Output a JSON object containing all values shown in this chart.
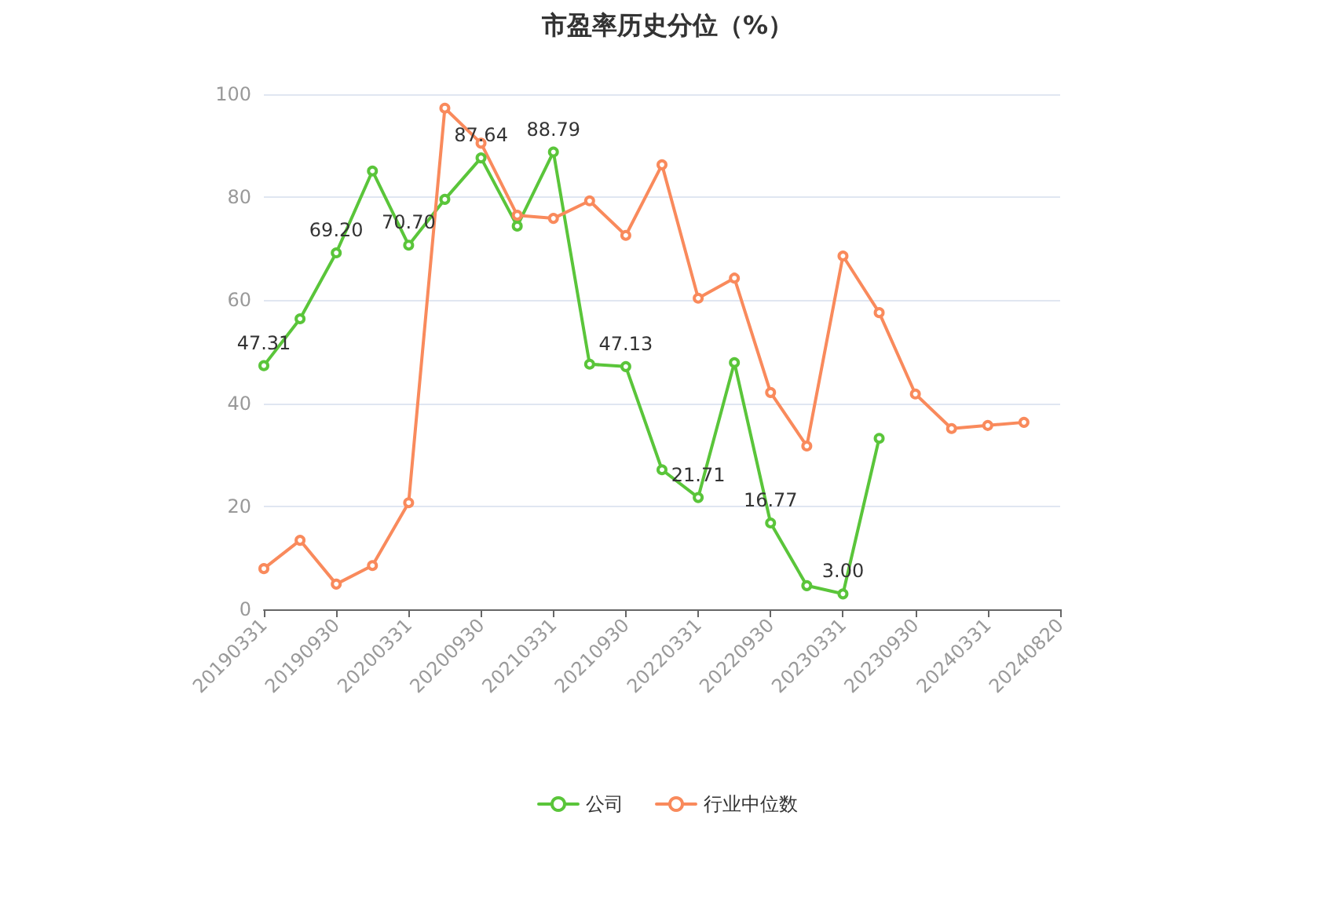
{
  "chart_data": {
    "type": "line",
    "title": "市盈率历史分位（%）",
    "categories": [
      "20190331",
      null,
      "20190930",
      null,
      "20200331",
      null,
      "20200930",
      null,
      "20210331",
      null,
      "20210930",
      null,
      "20220331",
      null,
      "20220930",
      null,
      "20230331",
      null,
      "20230930",
      null,
      "20240331",
      null,
      "20240820"
    ],
    "series": [
      {
        "name": "公司",
        "color": "#5ac53a",
        "values": [
          47.31,
          56.4,
          69.2,
          85.1,
          70.7,
          79.6,
          87.64,
          74.4,
          88.79,
          47.6,
          47.13,
          27.1,
          21.71,
          47.9,
          16.77,
          4.6,
          3.0,
          33.2,
          null,
          null,
          null,
          null,
          null
        ],
        "value_labels": [
          "47.31",
          null,
          "69.20",
          null,
          "70.70",
          null,
          "87.64",
          null,
          "88.79",
          null,
          "47.13",
          null,
          "21.71",
          null,
          "16.77",
          null,
          "3.00",
          null,
          null,
          null,
          null,
          null,
          null
        ]
      },
      {
        "name": "行业中位数",
        "color": "#f98a5c",
        "values": [
          7.9,
          13.4,
          4.9,
          8.5,
          20.7,
          97.3,
          90.5,
          76.5,
          75.9,
          79.3,
          72.6,
          86.3,
          60.4,
          64.3,
          42.1,
          31.7,
          68.6,
          57.6,
          41.8,
          35.1,
          35.7,
          36.3,
          null
        ]
      }
    ],
    "ylim": [
      0,
      100
    ],
    "yticks": [
      0,
      20,
      40,
      60,
      80,
      100
    ],
    "grid": "y",
    "legend": "bottom",
    "marker": "circle",
    "line_style": "solid"
  }
}
